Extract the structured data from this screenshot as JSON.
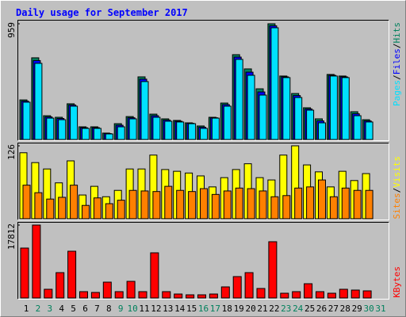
{
  "chart_data": [
    {
      "type": "bar",
      "title": "Daily usage for September 2017",
      "series": [
        {
          "name": "Pages",
          "color": "#00e0ff",
          "values": [
            309,
            631,
            177,
            164,
            276,
            92,
            92,
            46,
            105,
            171,
            480,
            184,
            151,
            145,
            131,
            92,
            177,
            276,
            664,
            532,
            368,
            926,
            513,
            348,
            243,
            138,
            526,
            513,
            197,
            145,
            null
          ]
        },
        {
          "name": "Files",
          "color": "#0000ff",
          "values": [
            318,
            654,
            187,
            174,
            286,
            98,
            98,
            49,
            118,
            180,
            500,
            197,
            161,
            151,
            134,
            102,
            180,
            289,
            683,
            558,
            394,
            942,
            519,
            364,
            253,
            154,
            532,
            519,
            213,
            154,
            null
          ]
        },
        {
          "name": "Hits",
          "color": "#00805c",
          "values": [
            328,
            677,
            197,
            184,
            296,
            105,
            105,
            53,
            131,
            190,
            519,
            210,
            171,
            158,
            138,
            112,
            184,
            302,
            703,
            585,
            420,
            959,
            526,
            381,
            263,
            171,
            539,
            526,
            230,
            164,
            null
          ]
        }
      ],
      "ylim": [
        0,
        959
      ],
      "yticks": [
        959
      ],
      "legend_separator": "/"
    },
    {
      "type": "bar",
      "series": [
        {
          "name": "Sites",
          "color": "#ff8000",
          "values": [
            58,
            45,
            34,
            37,
            58,
            23,
            36,
            26,
            32,
            49,
            48,
            47,
            56,
            49,
            47,
            52,
            42,
            48,
            53,
            52,
            48,
            38,
            40,
            53,
            55,
            67,
            38,
            53,
            49,
            49,
            null
          ]
        },
        {
          "name": "Visits",
          "color": "#ffff00",
          "values": [
            114,
            97,
            86,
            62,
            100,
            41,
            56,
            38,
            49,
            86,
            86,
            110,
            85,
            82,
            79,
            74,
            55,
            71,
            85,
            95,
            71,
            67,
            110,
            126,
            93,
            81,
            55,
            82,
            66,
            78,
            null
          ]
        }
      ],
      "ylim": [
        0,
        126
      ],
      "yticks": [
        126
      ],
      "legend_separator": "/"
    },
    {
      "type": "bar",
      "categories": [
        "1",
        "2",
        "3",
        "4",
        "5",
        "6",
        "7",
        "8",
        "9",
        "10",
        "11",
        "12",
        "13",
        "14",
        "15",
        "16",
        "17",
        "18",
        "19",
        "20",
        "21",
        "22",
        "23",
        "24",
        "25",
        "26",
        "27",
        "28",
        "29",
        "30",
        "31"
      ],
      "category_colors": [
        "#000000",
        "#00805c",
        "#00805c",
        "#000000",
        "#000000",
        "#000000",
        "#000000",
        "#000000",
        "#00805c",
        "#00805c",
        "#000000",
        "#000000",
        "#000000",
        "#000000",
        "#000000",
        "#00805c",
        "#00805c",
        "#000000",
        "#000000",
        "#000000",
        "#000000",
        "#000000",
        "#00805c",
        "#00805c",
        "#000000",
        "#000000",
        "#000000",
        "#000000",
        "#000000",
        "#00805c",
        "#00805c"
      ],
      "series": [
        {
          "name": "KBytes",
          "color": "#ff0000",
          "values": [
            12197,
            17812,
            2130,
            6196,
            11423,
            1549,
            1355,
            3872,
            1549,
            4066,
            1549,
            11036,
            1549,
            968,
            774,
            774,
            968,
            2710,
            5227,
            6196,
            2323,
            13746,
            1162,
            1549,
            3485,
            1549,
            1162,
            2130,
            1936,
            1742,
            null
          ]
        }
      ],
      "ylim": [
        0,
        17812
      ],
      "yticks": [
        17812
      ]
    }
  ]
}
